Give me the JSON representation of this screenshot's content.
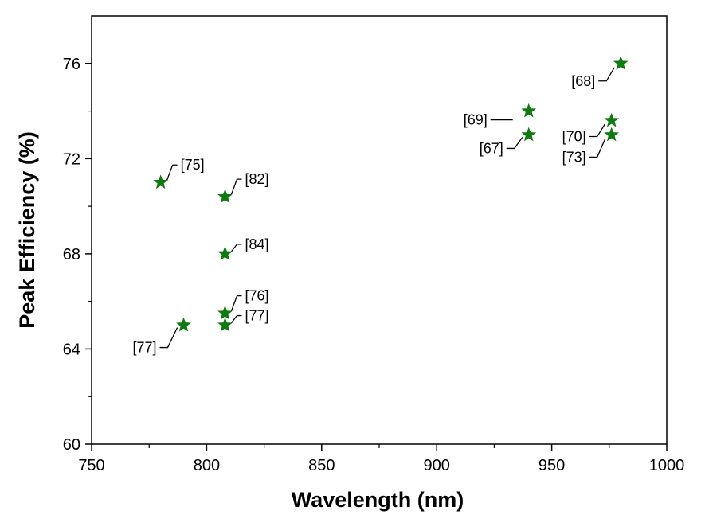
{
  "chart_data": {
    "type": "scatter",
    "xlabel": "Wavelength (nm)",
    "ylabel": "Peak Efficiency (%)",
    "xlim": [
      750,
      1000
    ],
    "ylim": [
      60,
      78
    ],
    "x_ticks": [
      750,
      800,
      850,
      900,
      950,
      1000
    ],
    "y_ticks": [
      60,
      64,
      68,
      72,
      76
    ],
    "x_tick_labels": [
      "750",
      "800",
      "850",
      "900",
      "950",
      "1000"
    ],
    "y_tick_labels": [
      "60",
      "64",
      "68",
      "72",
      "76"
    ],
    "grid": false,
    "legend": "none",
    "marker": "star",
    "color": "#0f7a0f",
    "points": [
      {
        "x": 780,
        "y": 71.0,
        "label": "[75]"
      },
      {
        "x": 808,
        "y": 70.4,
        "label": "[82]"
      },
      {
        "x": 808,
        "y": 68.0,
        "label": "[84]"
      },
      {
        "x": 808,
        "y": 65.5,
        "label": "[76]"
      },
      {
        "x": 808,
        "y": 65.0,
        "label": "[77]"
      },
      {
        "x": 790,
        "y": 65.0,
        "label": "[77]"
      },
      {
        "x": 940,
        "y": 74.0,
        "label": "[69]"
      },
      {
        "x": 940,
        "y": 73.0,
        "label": "[67]"
      },
      {
        "x": 980,
        "y": 76.0,
        "label": "[68]"
      },
      {
        "x": 976,
        "y": 73.6,
        "label": "[70]"
      },
      {
        "x": 976,
        "y": 73.0,
        "label": "[73]"
      }
    ]
  }
}
